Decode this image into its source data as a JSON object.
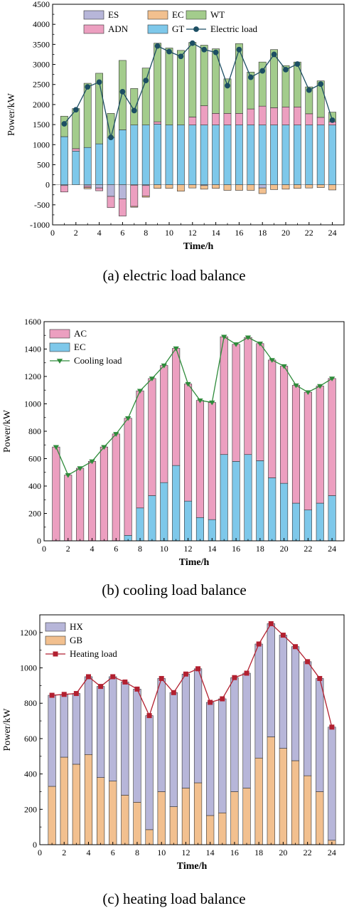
{
  "chart_data": [
    {
      "type": "bar",
      "subtype": "stacked-bar-with-line",
      "caption": "(a) electric load balance",
      "xlabel": "Time/h",
      "ylabel": "Power/kW",
      "xlim": [
        0,
        25
      ],
      "ylim": [
        -1000,
        4500
      ],
      "xticks": [
        0,
        2,
        4,
        6,
        8,
        10,
        12,
        14,
        16,
        18,
        20,
        22,
        24
      ],
      "yticks": [
        -1000,
        -500,
        0,
        500,
        1000,
        1500,
        2000,
        2500,
        3000,
        3500,
        4000,
        4500
      ],
      "legend_position": "top",
      "x": [
        1,
        2,
        3,
        4,
        5,
        6,
        7,
        8,
        9,
        10,
        11,
        12,
        13,
        14,
        15,
        16,
        17,
        18,
        19,
        20,
        21,
        22,
        23,
        24
      ],
      "series": [
        {
          "name": "GT",
          "color": "#7ec8ea",
          "kind": "bar",
          "values": [
            1200,
            840,
            930,
            1020,
            1180,
            1370,
            1490,
            1490,
            1510,
            1490,
            1490,
            1490,
            1490,
            1490,
            1490,
            1490,
            1490,
            1490,
            1490,
            1490,
            1490,
            1490,
            1490,
            1490
          ]
        },
        {
          "name": "ADN",
          "color": "#ec9fc0",
          "kind": "bar",
          "values": [
            0,
            60,
            0,
            0,
            0,
            0,
            0,
            0,
            60,
            0,
            0,
            200,
            480,
            290,
            290,
            290,
            400,
            470,
            430,
            450,
            450,
            280,
            190,
            80
          ]
        },
        {
          "name": "WT",
          "color": "#a3cc8c",
          "kind": "bar",
          "values": [
            510,
            1000,
            1600,
            1760,
            600,
            1730,
            910,
            1420,
            1960,
            1920,
            1860,
            1860,
            1510,
            1610,
            860,
            1740,
            920,
            1100,
            1450,
            1030,
            1120,
            670,
            910,
            240
          ]
        },
        {
          "name": "ES",
          "color": "#b7b6d9",
          "kind": "bar",
          "values": [
            -20,
            0,
            -30,
            -80,
            -290,
            -350,
            -10,
            -20,
            0,
            0,
            0,
            0,
            -20,
            0,
            0,
            0,
            0,
            -80,
            0,
            0,
            0,
            0,
            0,
            0
          ]
        },
        {
          "name": "ADN_neg",
          "color": "#ec9fc0",
          "kind": "bar",
          "values": [
            -160,
            0,
            -40,
            -70,
            -280,
            -430,
            -530,
            -260,
            0,
            0,
            0,
            0,
            0,
            0,
            0,
            0,
            0,
            0,
            0,
            0,
            0,
            0,
            0,
            0
          ]
        },
        {
          "name": "EC",
          "color": "#f2c08f",
          "kind": "bar",
          "values": [
            0,
            0,
            -30,
            0,
            0,
            0,
            -20,
            -30,
            -90,
            -90,
            -160,
            -80,
            -90,
            -90,
            -140,
            -140,
            -140,
            -140,
            -120,
            -110,
            -90,
            -80,
            -70,
            -130
          ]
        },
        {
          "name": "Electric load",
          "color": "#1c4e63",
          "kind": "line",
          "values": [
            1520,
            1870,
            2440,
            2560,
            1180,
            2320,
            1850,
            2600,
            3460,
            3320,
            3200,
            3530,
            3370,
            3300,
            2470,
            3370,
            2680,
            2840,
            3250,
            2870,
            3010,
            2360,
            2510,
            1610
          ]
        }
      ],
      "legend": [
        "ES",
        "EC",
        "WT",
        "ADN",
        "GT",
        "Electric load"
      ]
    },
    {
      "type": "bar",
      "subtype": "stacked-bar-with-line",
      "caption": "(b) cooling load balance",
      "xlabel": "Time/h",
      "ylabel": "Power/kW",
      "xlim": [
        0,
        25
      ],
      "ylim": [
        0,
        1600
      ],
      "xticks": [
        0,
        2,
        4,
        6,
        8,
        10,
        12,
        14,
        16,
        18,
        20,
        22,
        24
      ],
      "yticks": [
        0,
        200,
        400,
        600,
        800,
        1000,
        1200,
        1400,
        1600
      ],
      "legend_position": "top-left",
      "x": [
        1,
        2,
        3,
        4,
        5,
        6,
        7,
        8,
        9,
        10,
        11,
        12,
        13,
        14,
        15,
        16,
        17,
        18,
        19,
        20,
        21,
        22,
        23,
        24
      ],
      "series": [
        {
          "name": "EC",
          "color": "#7ec8ea",
          "kind": "bar",
          "values": [
            0,
            0,
            0,
            0,
            0,
            0,
            40,
            240,
            330,
            425,
            550,
            290,
            170,
            155,
            630,
            580,
            630,
            585,
            460,
            420,
            275,
            225,
            275,
            330
          ]
        },
        {
          "name": "AC",
          "color": "#ec9fc0",
          "kind": "bar",
          "values": [
            685,
            480,
            530,
            580,
            685,
            780,
            855,
            855,
            855,
            855,
            855,
            855,
            855,
            855,
            860,
            855,
            855,
            855,
            860,
            855,
            860,
            860,
            855,
            855
          ]
        },
        {
          "name": "Cooling load",
          "color": "#2e8b3a",
          "kind": "line",
          "values": [
            685,
            480,
            530,
            580,
            685,
            780,
            895,
            1095,
            1185,
            1280,
            1405,
            1145,
            1025,
            1010,
            1490,
            1435,
            1485,
            1440,
            1320,
            1275,
            1135,
            1085,
            1130,
            1185
          ]
        }
      ],
      "legend": [
        "AC",
        "EC",
        "Cooling load"
      ]
    },
    {
      "type": "bar",
      "subtype": "stacked-bar-with-line",
      "caption": "(c) heating load balance",
      "xlabel": "Time/h",
      "ylabel": "Power/kW",
      "xlim": [
        0,
        25
      ],
      "ylim": [
        0,
        1300
      ],
      "xticks": [
        0,
        2,
        4,
        6,
        8,
        10,
        12,
        14,
        16,
        18,
        20,
        22,
        24
      ],
      "yticks": [
        0,
        200,
        400,
        600,
        800,
        1000,
        1200
      ],
      "legend_position": "top-left",
      "x": [
        1,
        2,
        3,
        4,
        5,
        6,
        7,
        8,
        9,
        10,
        11,
        12,
        13,
        14,
        15,
        16,
        17,
        18,
        19,
        20,
        21,
        22,
        23,
        24
      ],
      "series": [
        {
          "name": "GB",
          "color": "#f2c08f",
          "kind": "bar",
          "values": [
            330,
            495,
            455,
            510,
            380,
            360,
            280,
            240,
            85,
            300,
            215,
            320,
            350,
            165,
            180,
            300,
            320,
            490,
            610,
            545,
            475,
            390,
            300,
            25
          ]
        },
        {
          "name": "HX",
          "color": "#b7b6d9",
          "kind": "bar",
          "values": [
            515,
            355,
            400,
            440,
            515,
            590,
            640,
            640,
            645,
            640,
            645,
            645,
            645,
            640,
            645,
            645,
            650,
            645,
            640,
            640,
            645,
            645,
            640,
            640
          ]
        },
        {
          "name": "Heating load",
          "color": "#b22030",
          "kind": "line",
          "values": [
            845,
            850,
            855,
            950,
            895,
            950,
            920,
            880,
            730,
            940,
            860,
            965,
            995,
            805,
            825,
            945,
            970,
            1135,
            1250,
            1185,
            1120,
            1035,
            940,
            665
          ]
        }
      ],
      "legend": [
        "HX",
        "GB",
        "Heating load"
      ]
    }
  ]
}
